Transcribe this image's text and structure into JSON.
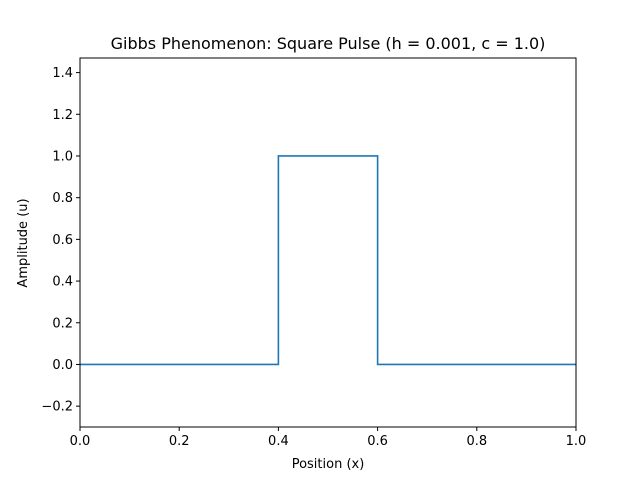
{
  "chart_data": {
    "type": "line",
    "title": "Gibbs Phenomenon: Square Pulse (h = 0.001, c = 1.0)",
    "xlabel": "Position (x)",
    "ylabel": "Amplitude (u)",
    "xlim": [
      0.0,
      1.0
    ],
    "ylim": [
      -0.3,
      1.47
    ],
    "grid": false,
    "x_ticks": [
      0.0,
      0.2,
      0.4,
      0.6,
      0.8,
      1.0
    ],
    "x_tick_labels": [
      "0.0",
      "0.2",
      "0.4",
      "0.6",
      "0.8",
      "1.0"
    ],
    "y_ticks": [
      -0.2,
      0.0,
      0.2,
      0.4,
      0.6,
      0.8,
      1.0,
      1.2,
      1.4
    ],
    "y_tick_labels": [
      "−0.2",
      "0.0",
      "0.2",
      "0.4",
      "0.6",
      "0.8",
      "1.0",
      "1.2",
      "1.4"
    ],
    "series": [
      {
        "color": "#1f77b4",
        "x": [
          0.0,
          0.4,
          0.4,
          0.6,
          0.6,
          1.0
        ],
        "y": [
          0.0,
          0.0,
          1.0,
          1.0,
          0.0,
          0.0
        ]
      }
    ]
  }
}
